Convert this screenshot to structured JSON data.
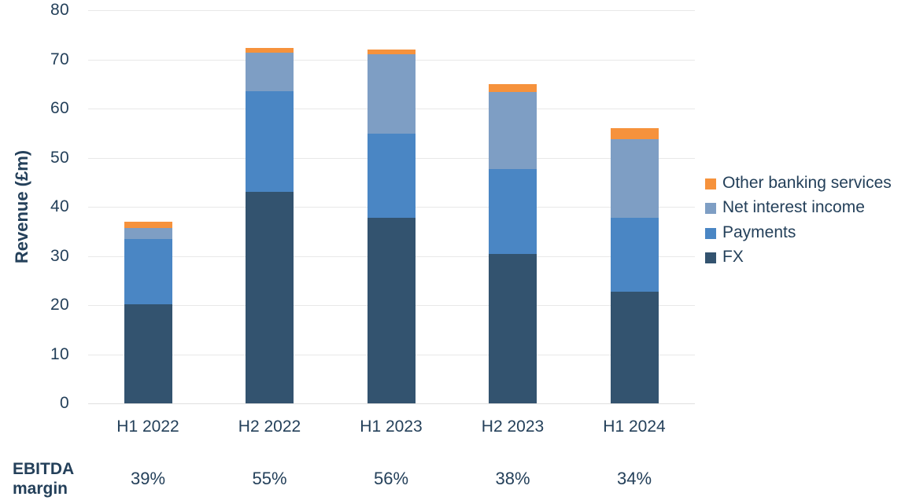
{
  "chart_data": {
    "type": "bar",
    "stacked": true,
    "title": "",
    "categories": [
      "H1 2022",
      "H2 2022",
      "H1 2023",
      "H2 2023",
      "H1 2024"
    ],
    "series": [
      {
        "name": "FX",
        "color": "#33536F",
        "values": [
          20.2,
          43.0,
          37.8,
          30.4,
          22.8
        ]
      },
      {
        "name": "Payments",
        "color": "#4A86C4",
        "values": [
          13.2,
          20.5,
          17.1,
          17.3,
          15.0
        ]
      },
      {
        "name": "Net interest income",
        "color": "#7E9EC4",
        "values": [
          2.3,
          7.9,
          16.1,
          15.6,
          15.9
        ]
      },
      {
        "name": "Other banking services",
        "color": "#F6923C",
        "values": [
          1.3,
          1.0,
          1.0,
          1.6,
          2.3
        ]
      }
    ],
    "totals": [
      37.0,
      72.4,
      72.0,
      64.9,
      56.0
    ],
    "xlabel": "",
    "ylabel": "Revenue (£m)",
    "ylim": [
      0,
      80
    ],
    "yticks": [
      0,
      10,
      20,
      30,
      40,
      50,
      60,
      70,
      80
    ],
    "grid": true,
    "legend_position": "right",
    "legend_order": [
      "Other banking services",
      "Net interest income",
      "Payments",
      "FX"
    ],
    "footer": {
      "label_lines": [
        "EBITDA",
        "margin"
      ],
      "values": [
        "39%",
        "55%",
        "56%",
        "38%",
        "34%"
      ]
    }
  },
  "style": {
    "text_color": "#24405A",
    "gridline_color": "#E8E8E8",
    "background": "#FFFFFF"
  }
}
